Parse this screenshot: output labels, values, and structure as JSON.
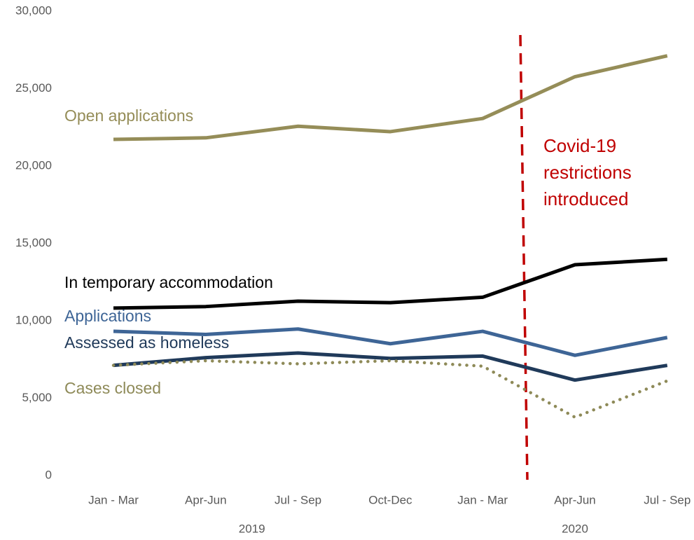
{
  "chart_data": {
    "type": "line",
    "categories": [
      "Jan - Mar",
      "Apr-Jun",
      "Jul - Sep",
      "Oct-Dec",
      "Jan - Mar",
      "Apr-Jun",
      "Jul - Sep"
    ],
    "category_groups": [
      {
        "label": "2019",
        "count": 4
      },
      {
        "label": "2020",
        "count": 3
      }
    ],
    "series": [
      {
        "name": "Open applications",
        "color": "#958d58",
        "style": "solid",
        "values": [
          21900,
          22000,
          22750,
          22400,
          23250,
          25950,
          27300
        ]
      },
      {
        "name": "In temporary accommodation",
        "color": "#000000",
        "style": "solid",
        "values": [
          11000,
          11100,
          11450,
          11350,
          11700,
          13800,
          14150
        ]
      },
      {
        "name": "Applications",
        "color": "#3e6596",
        "style": "solid",
        "values": [
          9500,
          9300,
          9650,
          8700,
          9500,
          7950,
          9100
        ]
      },
      {
        "name": "Assessed as homeless",
        "color": "#203a5a",
        "style": "solid",
        "values": [
          7300,
          7800,
          8100,
          7750,
          7900,
          6350,
          7300
        ]
      },
      {
        "name": "Cases closed",
        "color": "#8e8a58",
        "style": "dotted",
        "values": [
          7300,
          7600,
          7400,
          7600,
          7250,
          3950,
          6300
        ]
      }
    ],
    "ylim": [
      0,
      30000
    ],
    "yticks": [
      0,
      {
        "value": 5000,
        "label": "5,000"
      },
      {
        "value": 10000,
        "label": "10,000"
      },
      {
        "value": 15000,
        "label": "15,000"
      },
      {
        "value": 20000,
        "label": "20,000"
      },
      {
        "value": 25000,
        "label": "25,000"
      },
      {
        "value": 30000,
        "label": "30,000"
      }
    ],
    "grid": false,
    "annotation": {
      "lines": [
        "Covid-19",
        "restrictions",
        "introduced"
      ],
      "color": "#c00000"
    }
  }
}
